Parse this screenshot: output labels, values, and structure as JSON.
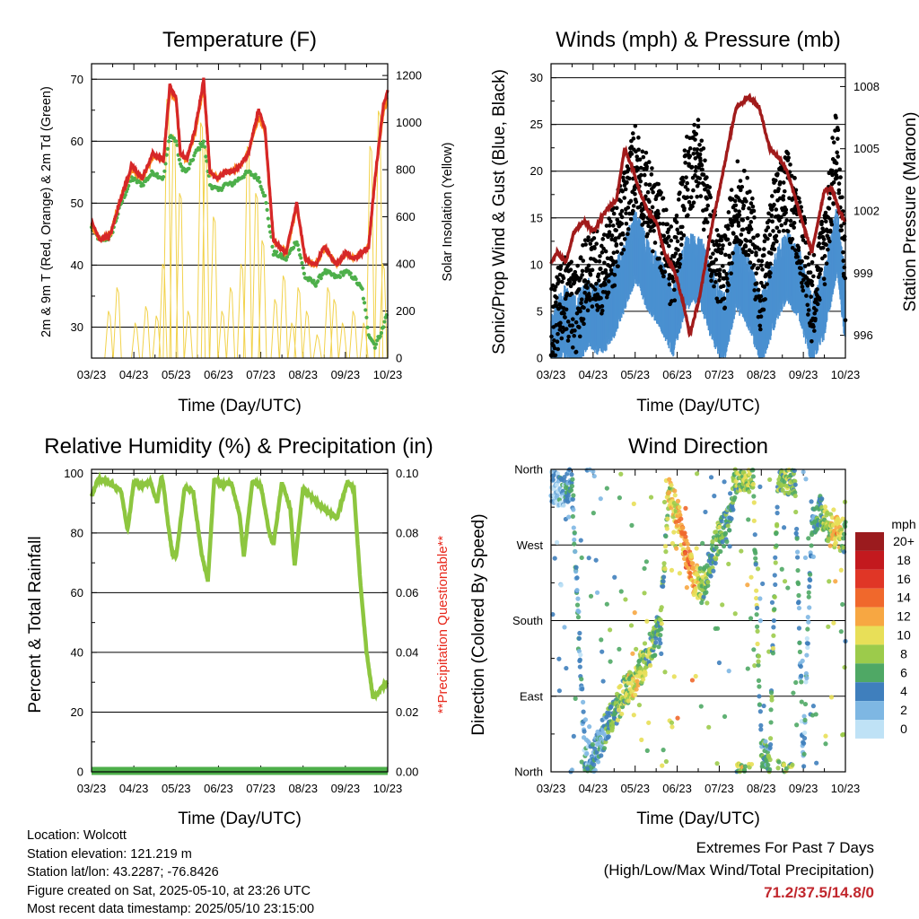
{
  "panels": {
    "temperature": {
      "title": "Temperature (F)",
      "ylabel_left": "2m & 9m T (Red, Orange) & 2m Td (Green)",
      "ylabel_right": "Solar Insolation (Yellow)",
      "xlabel": "Time (Day/UTC)"
    },
    "winds": {
      "title": "Winds (mph) & Pressure (mb)",
      "ylabel_left": "Sonic/Prop Wind & Gust (Blue, Black)",
      "ylabel_right": "Station Pressure (Maroon)",
      "xlabel": "Time (Day/UTC)"
    },
    "humidity": {
      "title": "Relative Humidity (%) & Precipitation (in)",
      "ylabel_left": "Percent & Total Rainfall",
      "ylabel_right": "**Precipitation Questionable**",
      "xlabel": "Time (Day/UTC)"
    },
    "direction": {
      "title": "Wind Direction",
      "ylabel_left": "Direction (Colored By Speed)",
      "xlabel": "Time (Day/UTC)",
      "colorbar_title": "mph",
      "colorbar_labels": [
        "20+",
        "18",
        "16",
        "14",
        "12",
        "10",
        "8",
        "6",
        "4",
        "2",
        "0"
      ],
      "colorbar_colors": [
        "#9b1b1e",
        "#c3191e",
        "#e03626",
        "#f0682c",
        "#f7a742",
        "#e8df58",
        "#9ccb4b",
        "#4fa865",
        "#3f7fbd",
        "#7eb7e3",
        "#bfe2f6"
      ]
    }
  },
  "info": {
    "location": "Location: Wolcott",
    "elevation": "Station elevation: 121.219 m",
    "latlon": "Station lat/lon: 43.2287; -76.8426",
    "created": "Figure created on Sat, 2025-05-10, at 23:26 UTC",
    "recent": "Most recent data timestamp: 2025/05/10 23:15:00"
  },
  "extremes": {
    "line1": "Extremes For Past 7 Days",
    "line2": "(High/Low/Max Wind/Total Precipitation)",
    "values": "71.2/37.5/14.8/0"
  },
  "chart_data": [
    {
      "type": "line",
      "title": "Temperature (F)",
      "xlabel": "Time (Day/UTC)",
      "ylabel": "2m & 9m T (Red, Orange) & 2m Td (Green)",
      "y2label": "Solar Insolation (Yellow)",
      "x_ticks": [
        "03/23",
        "04/23",
        "05/23",
        "06/23",
        "07/23",
        "08/23",
        "09/23",
        "10/23"
      ],
      "x_range": [
        0,
        7
      ],
      "ylim": [
        25,
        72.5
      ],
      "y_ticks": [
        30,
        40,
        50,
        60,
        70
      ],
      "y2lim": [
        0,
        1250
      ],
      "y2_ticks": [
        0,
        200,
        400,
        600,
        800,
        1000,
        1200
      ],
      "series": [
        {
          "name": "2m T",
          "color": "#d62728",
          "x": [
            0,
            0.2,
            0.45,
            0.7,
            0.95,
            1.2,
            1.45,
            1.7,
            1.85,
            2.0,
            2.1,
            2.25,
            2.45,
            2.65,
            2.8,
            3.0,
            3.15,
            3.3,
            3.5,
            3.7,
            3.95,
            4.1,
            4.3,
            4.6,
            4.85,
            5.05,
            5.3,
            5.5,
            5.8,
            6.0,
            6.2,
            6.4,
            6.55,
            6.7,
            6.9,
            7.0
          ],
          "y": [
            47,
            44,
            45,
            51,
            56,
            54,
            58,
            57,
            69,
            67,
            58,
            57,
            62,
            70,
            55,
            54,
            55,
            55,
            56,
            58,
            65,
            62,
            44,
            42,
            50,
            41,
            40,
            43,
            40,
            42,
            41,
            42,
            43,
            54,
            66,
            68
          ]
        },
        {
          "name": "9m T",
          "color": "#ff8c1a",
          "x": [
            0,
            0.2,
            0.45,
            0.7,
            0.95,
            1.2,
            1.45,
            1.7,
            1.85,
            2.0,
            2.1,
            2.25,
            2.45,
            2.65,
            2.8,
            3.0,
            3.15,
            3.3,
            3.5,
            3.7,
            3.95,
            4.1,
            4.3,
            4.6,
            4.85,
            5.05,
            5.3,
            5.5,
            5.8,
            6.0,
            6.2,
            6.4,
            6.55,
            6.7,
            6.9,
            7.0
          ],
          "y": [
            46.5,
            44,
            45,
            51,
            55.5,
            54,
            57.5,
            57,
            68,
            66.5,
            58,
            57,
            61.5,
            69,
            55,
            54,
            55,
            55,
            56,
            58,
            64,
            61.5,
            44,
            42,
            49.5,
            41,
            40,
            43,
            40,
            42,
            41,
            42,
            43,
            54,
            65,
            67
          ]
        },
        {
          "name": "2m Td",
          "color": "#4daf4a",
          "x": [
            0,
            0.2,
            0.45,
            0.7,
            0.95,
            1.2,
            1.45,
            1.7,
            1.85,
            2.0,
            2.1,
            2.25,
            2.45,
            2.65,
            2.8,
            3.0,
            3.15,
            3.3,
            3.5,
            3.7,
            3.95,
            4.1,
            4.3,
            4.6,
            4.85,
            5.05,
            5.3,
            5.5,
            5.8,
            6.0,
            6.2,
            6.4,
            6.55,
            6.7,
            6.9,
            7.0
          ],
          "y": [
            46,
            44,
            44.5,
            50,
            54,
            53,
            55,
            54,
            61,
            60,
            56,
            55,
            58,
            60,
            53,
            52,
            53,
            53,
            54,
            55,
            54,
            51,
            42,
            41,
            44,
            38,
            37,
            39,
            38,
            39,
            38,
            36,
            29,
            27,
            30,
            33
          ]
        },
        {
          "name": "Solar Insolation",
          "color": "#f2d24b",
          "axis": "y2",
          "peaks_x": [
            0.42,
            0.62,
            1.05,
            1.3,
            1.55,
            1.7,
            1.8,
            1.95,
            2.1,
            2.3,
            2.6,
            2.7,
            2.9,
            3.1,
            3.3,
            3.55,
            3.7,
            3.9,
            4.05,
            4.35,
            4.55,
            4.75,
            4.9,
            5.1,
            5.35,
            5.6,
            5.75,
            5.95,
            6.2,
            6.45,
            6.6,
            6.8,
            6.9
          ],
          "peaks_y": [
            200,
            300,
            150,
            220,
            180,
            400,
            1100,
            950,
            700,
            200,
            1000,
            900,
            600,
            200,
            300,
            400,
            900,
            700,
            500,
            250,
            350,
            150,
            300,
            200,
            100,
            300,
            250,
            150,
            200,
            150,
            900,
            1050,
            400
          ]
        }
      ]
    },
    {
      "type": "scatter",
      "title": "Winds (mph) & Pressure (mb)",
      "xlabel": "Time (Day/UTC)",
      "ylabel": "Sonic/Prop Wind & Gust (Blue, Black)",
      "y2label": "Station Pressure (Maroon)",
      "x_ticks": [
        "03/23",
        "04/23",
        "05/23",
        "06/23",
        "07/23",
        "08/23",
        "09/23",
        "10/23"
      ],
      "x_range": [
        0,
        7
      ],
      "ylim": [
        0,
        31.5
      ],
      "y_ticks": [
        0,
        5,
        10,
        15,
        20,
        25,
        30
      ],
      "y2lim": [
        994.9,
        1009.1
      ],
      "y2_ticks": [
        996,
        999,
        1002,
        1005,
        1008
      ],
      "series": [
        {
          "name": "Sonic/Prop Wind",
          "color": "#4a90d0",
          "x": [
            0,
            0.3,
            0.6,
            0.9,
            1.2,
            1.5,
            1.75,
            2.0,
            2.3,
            2.6,
            2.9,
            3.2,
            3.5,
            3.8,
            4.1,
            4.4,
            4.7,
            5.0,
            5.3,
            5.6,
            5.9,
            6.2,
            6.5,
            6.8,
            7.0
          ],
          "y": [
            1,
            4,
            3,
            5,
            4,
            6,
            9,
            12,
            9,
            7,
            4,
            9,
            10,
            6,
            3,
            9,
            7,
            3,
            7,
            10,
            8,
            3,
            6,
            13,
            5
          ]
        },
        {
          "name": "Gust",
          "color": "#000000",
          "x": [
            0,
            0.3,
            0.6,
            0.9,
            1.2,
            1.5,
            1.75,
            2.0,
            2.3,
            2.6,
            2.9,
            3.2,
            3.5,
            3.8,
            4.1,
            4.4,
            4.7,
            5.0,
            5.3,
            5.6,
            5.9,
            6.2,
            6.5,
            6.8,
            7.0
          ],
          "y": [
            3,
            7,
            5,
            10,
            9,
            12,
            16,
            21,
            17,
            14,
            9,
            19,
            22,
            13,
            8,
            17,
            15,
            7,
            15,
            18,
            14,
            6,
            12,
            23,
            8
          ]
        },
        {
          "name": "Station Pressure",
          "color": "#a11b1b",
          "axis": "y2",
          "x": [
            0,
            0.15,
            0.35,
            0.55,
            0.8,
            1.0,
            1.3,
            1.55,
            1.75,
            1.95,
            2.1,
            2.3,
            2.5,
            2.7,
            2.95,
            3.15,
            3.3,
            3.55,
            3.8,
            4.1,
            4.4,
            4.7,
            4.95,
            5.2,
            5.45,
            5.6,
            5.9,
            6.2,
            6.5,
            6.7,
            6.85,
            7.0
          ],
          "y": [
            999.5,
            1000,
            999.5,
            1001,
            1001.5,
            1001,
            1002,
            1002.5,
            1005,
            1004,
            1003,
            1002,
            1001.5,
            1000,
            999,
            997.5,
            996,
            998,
            1001,
            1004,
            1007,
            1007.5,
            1007,
            1005,
            1004.5,
            1004,
            1002,
            1000,
            1003,
            1003,
            1002,
            1001.5
          ]
        }
      ]
    },
    {
      "type": "line",
      "title": "Relative Humidity (%) & Precipitation (in)",
      "xlabel": "Time (Day/UTC)",
      "ylabel": "Percent & Total Rainfall",
      "y2label": "**Precipitation Questionable**",
      "x_ticks": [
        "03/23",
        "04/23",
        "05/23",
        "06/23",
        "07/23",
        "08/23",
        "09/23",
        "10/23"
      ],
      "x_range": [
        0,
        7
      ],
      "ylim": [
        0,
        101.3
      ],
      "y_ticks": [
        0,
        20,
        40,
        60,
        80,
        100
      ],
      "y2lim": [
        0,
        0.1013
      ],
      "y2_ticks": [
        "0.00",
        "0.02",
        "0.04",
        "0.06",
        "0.08",
        "0.10"
      ],
      "series": [
        {
          "name": "Relative Humidity",
          "color": "#8dc63f",
          "x": [
            0,
            0.15,
            0.4,
            0.7,
            0.85,
            1.0,
            1.2,
            1.4,
            1.55,
            1.65,
            1.7,
            1.8,
            1.9,
            2.0,
            2.2,
            2.4,
            2.6,
            2.75,
            2.9,
            3.1,
            3.3,
            3.5,
            3.6,
            3.8,
            4.0,
            4.2,
            4.3,
            4.5,
            4.7,
            4.8,
            5.0,
            5.2,
            5.5,
            5.8,
            6.05,
            6.2,
            6.35,
            6.5,
            6.65,
            6.75,
            6.85,
            7.0
          ],
          "y": [
            92,
            98,
            97,
            94,
            81,
            97,
            96,
            97,
            90,
            99,
            96,
            84,
            74,
            72,
            95,
            94,
            73,
            64,
            98,
            96,
            97,
            86,
            72,
            97,
            96,
            80,
            76,
            97,
            88,
            69,
            95,
            92,
            88,
            85,
            97,
            95,
            64,
            40,
            25,
            26,
            28,
            30
          ]
        },
        {
          "name": "Total Precipitation",
          "color": "#4daf4a",
          "axis": "y2",
          "x": [
            0,
            7
          ],
          "y": [
            0,
            0
          ]
        }
      ]
    },
    {
      "type": "scatter",
      "title": "Wind Direction",
      "xlabel": "Time (Day/UTC)",
      "ylabel": "Direction (Colored By Speed)",
      "x_ticks": [
        "03/23",
        "04/23",
        "05/23",
        "06/23",
        "07/23",
        "08/23",
        "09/23",
        "10/23"
      ],
      "x_range": [
        0,
        7
      ],
      "ylim": [
        0,
        360
      ],
      "y_ticks": [
        "North",
        "East",
        "South",
        "West",
        "North"
      ],
      "colorbar": {
        "title": "mph",
        "labels": [
          "20+",
          "18",
          "16",
          "14",
          "12",
          "10",
          "8",
          "6",
          "4",
          "2",
          "0"
        ]
      },
      "series": [
        {
          "name": "Wind Direction",
          "x": [
            0.1,
            0.3,
            0.5,
            0.8,
            1.0,
            1.2,
            1.4,
            1.6,
            1.8,
            2.0,
            2.2,
            2.4,
            2.6,
            2.8,
            3.0,
            3.2,
            3.4,
            3.6,
            3.8,
            4.0,
            4.2,
            4.4,
            4.6,
            4.8,
            5.0,
            5.2,
            5.4,
            5.6,
            5.8,
            6.0,
            6.2,
            6.4,
            6.6,
            6.8,
            7.0
          ],
          "y": [
            340,
            330,
            345,
            20,
            15,
            40,
            60,
            80,
            100,
            110,
            130,
            150,
            170,
            330,
            310,
            260,
            230,
            220,
            250,
            280,
            295,
            350,
            355,
            350,
            20,
            15,
            355,
            350,
            350,
            10,
            300,
            310,
            290,
            285,
            280
          ],
          "speed": [
            2,
            3,
            4,
            3,
            4,
            4,
            6,
            7,
            8,
            9,
            8,
            7,
            6,
            9,
            11,
            13,
            12,
            8,
            6,
            7,
            5,
            7,
            9,
            8,
            5,
            6,
            7,
            8,
            6,
            3,
            4,
            5,
            9,
            11,
            6
          ]
        }
      ]
    }
  ]
}
